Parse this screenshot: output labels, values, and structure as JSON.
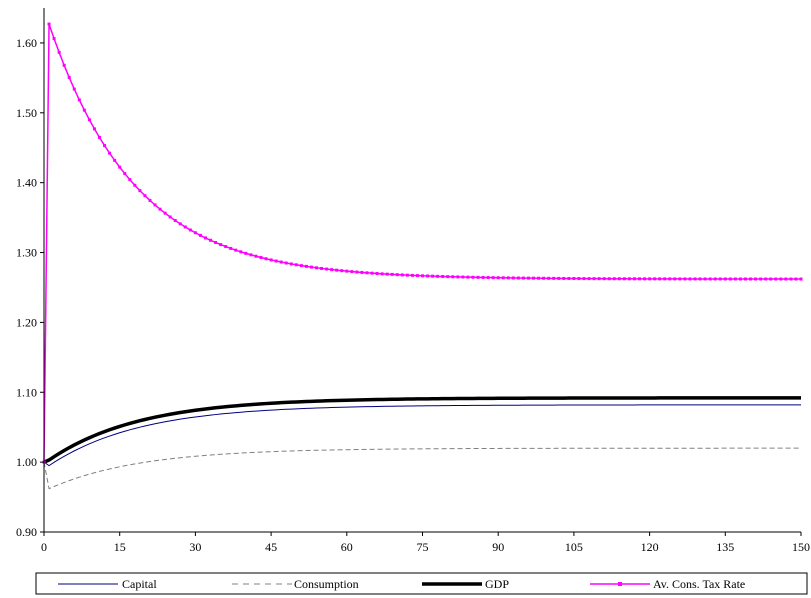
{
  "chart_data": {
    "type": "line",
    "title": "",
    "xlabel": "",
    "ylabel": "",
    "xlim": [
      0,
      150
    ],
    "ylim": [
      0.9,
      1.65
    ],
    "x_ticks": [
      "0",
      "15",
      "30",
      "45",
      "60",
      "75",
      "90",
      "105",
      "120",
      "135",
      "150"
    ],
    "y_ticks": [
      "0.90",
      "1.00",
      "1.10",
      "1.20",
      "1.30",
      "1.40",
      "1.50",
      "1.60"
    ],
    "grid": false,
    "legend_position": "bottom",
    "series": [
      {
        "name": "Capital",
        "color": "#000080",
        "style": "solid",
        "x": [
          0,
          1,
          5,
          10,
          15,
          20,
          30,
          45,
          60,
          75,
          90,
          105,
          120,
          135,
          150
        ],
        "values": [
          1.0,
          0.995,
          1.013,
          1.03,
          1.043,
          1.053,
          1.065,
          1.074,
          1.078,
          1.08,
          1.081,
          1.082,
          1.082,
          1.082,
          1.082
        ]
      },
      {
        "name": "Consumption",
        "color": "#808080",
        "style": "dashed",
        "x": [
          0,
          1,
          5,
          10,
          15,
          20,
          30,
          45,
          60,
          75,
          90,
          105,
          120,
          135,
          150
        ],
        "values": [
          1.0,
          0.962,
          0.972,
          0.983,
          0.992,
          0.999,
          1.007,
          1.014,
          1.017,
          1.019,
          1.02,
          1.02,
          1.02,
          1.02,
          1.02
        ]
      },
      {
        "name": "GDP",
        "color": "#000000",
        "style": "thick",
        "x": [
          0,
          1,
          5,
          10,
          15,
          20,
          30,
          45,
          60,
          75,
          90,
          105,
          120,
          135,
          150
        ],
        "values": [
          1.0,
          1.003,
          1.018,
          1.036,
          1.05,
          1.061,
          1.074,
          1.083,
          1.088,
          1.09,
          1.091,
          1.092,
          1.092,
          1.092,
          1.092
        ]
      },
      {
        "name": "Av. Cons. Tax Rate",
        "color": "#ff00ff",
        "style": "marker",
        "peak": 1.627,
        "asymptote": 1.262,
        "x": [
          0,
          1,
          5,
          10,
          15,
          20,
          30,
          45,
          60,
          75,
          90,
          105,
          120,
          135,
          150
        ],
        "values": [
          1.0,
          1.627,
          1.57,
          1.49,
          1.435,
          1.393,
          1.34,
          1.297,
          1.277,
          1.269,
          1.265,
          1.263,
          1.262,
          1.262,
          1.262
        ]
      }
    ]
  }
}
